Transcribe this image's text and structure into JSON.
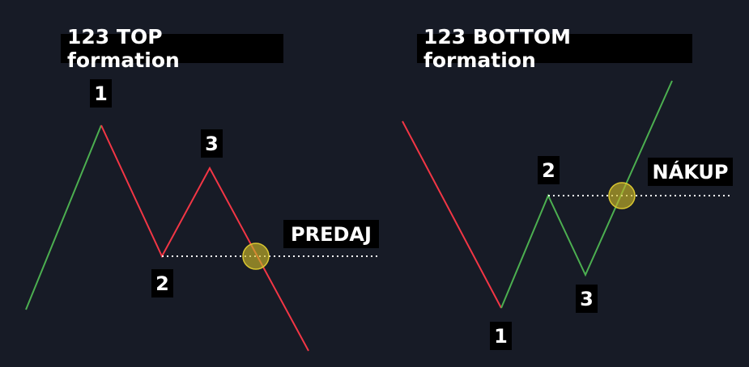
{
  "colors": {
    "background": "#171b26",
    "up": "#4caf50",
    "down": "#f23645",
    "signal_circle": "#c8b628",
    "label_bg": "#000000",
    "text": "#ffffff"
  },
  "top": {
    "title": "123 TOP formation",
    "p1": "1",
    "p2": "2",
    "p3": "3",
    "action": "PREDAJ"
  },
  "bottom": {
    "title": "123 BOTTOM formation",
    "p1": "1",
    "p2": "2",
    "p3": "3",
    "action": "NÁKUP"
  }
}
